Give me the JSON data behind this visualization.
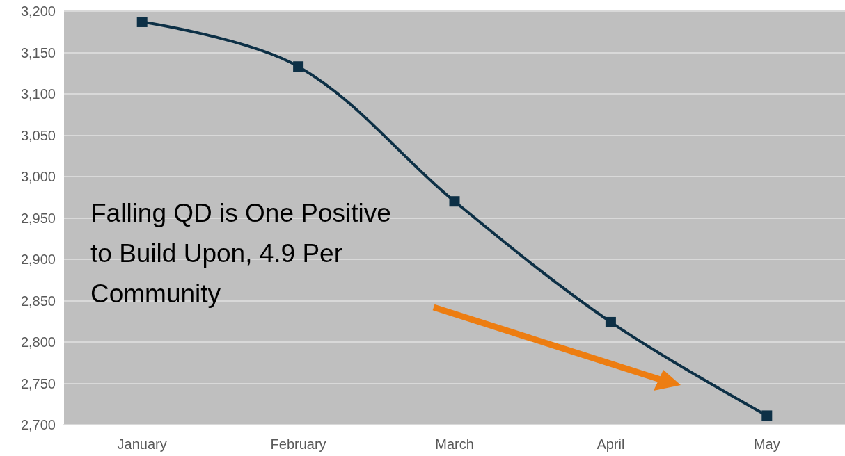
{
  "chart_data": {
    "type": "line",
    "categories": [
      "January",
      "February",
      "March",
      "April",
      "May"
    ],
    "series": [
      {
        "color": "#0d3046",
        "values": [
          3187,
          3133,
          2970,
          2824,
          2711
        ]
      }
    ],
    "ylim": [
      2700,
      3200
    ],
    "yticks": [
      {
        "value": 2700,
        "label": "2,700"
      },
      {
        "value": 2750,
        "label": "2,750"
      },
      {
        "value": 2800,
        "label": "2,800"
      },
      {
        "value": 2850,
        "label": "2,850"
      },
      {
        "value": 2900,
        "label": "2,900"
      },
      {
        "value": 2950,
        "label": "2,950"
      },
      {
        "value": 3000,
        "label": "3,000"
      },
      {
        "value": 3050,
        "label": "3,050"
      },
      {
        "value": 3100,
        "label": "3,100"
      },
      {
        "value": 3150,
        "label": "3,150"
      },
      {
        "value": 3200,
        "label": "3,200"
      }
    ],
    "grid": "y",
    "marker": "square",
    "line_style": "solid",
    "annotations": [
      "Falling QD is One Positive to Build Upon, 4.9 Per Community"
    ]
  }
}
